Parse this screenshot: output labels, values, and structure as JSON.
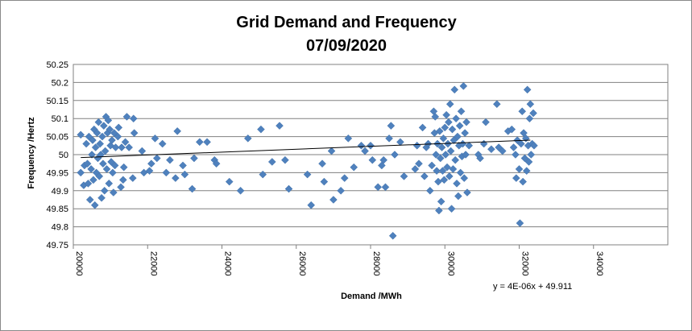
{
  "chart_data": {
    "type": "scatter",
    "title_line1": "Grid Demand and Frequency",
    "title_line2": "07/09/2020",
    "xlabel": "Demand /MWh",
    "ylabel": "Frequency /Hertz",
    "xlim": [
      20000,
      36000
    ],
    "ylim": [
      49.75,
      50.25
    ],
    "x_ticks": [
      "20000",
      "22000",
      "24000",
      "26000",
      "28000",
      "30000",
      "32000",
      "34000"
    ],
    "y_ticks": [
      "49.75",
      "49.8",
      "49.85",
      "49.9",
      "49.95",
      "50",
      "50.05",
      "50.1",
      "50.15",
      "50.2",
      "50.25"
    ],
    "grid": "horizontal",
    "marker_color": "#4f81bd",
    "trendline": {
      "slope": 4e-06,
      "intercept": 49.911,
      "x_range": [
        20200,
        32300
      ],
      "equation": "y = 4E-06x + 49.911"
    },
    "points": [
      [
        20200,
        50.055
      ],
      [
        20200,
        49.95
      ],
      [
        20280,
        49.915
      ],
      [
        20300,
        49.97
      ],
      [
        20350,
        50.03
      ],
      [
        20380,
        49.975
      ],
      [
        20400,
        49.92
      ],
      [
        20420,
        50.05
      ],
      [
        20450,
        49.875
      ],
      [
        20480,
        49.96
      ],
      [
        20500,
        50.0
      ],
      [
        20520,
        50.04
      ],
      [
        20540,
        49.93
      ],
      [
        20560,
        50.07
      ],
      [
        20580,
        49.86
      ],
      [
        20600,
        50.02
      ],
      [
        20620,
        49.95
      ],
      [
        20640,
        50.06
      ],
      [
        20660,
        49.99
      ],
      [
        20680,
        50.09
      ],
      [
        20700,
        49.94
      ],
      [
        20720,
        50.03
      ],
      [
        20740,
        50.0
      ],
      [
        20760,
        49.88
      ],
      [
        20780,
        50.05
      ],
      [
        20800,
        49.975
      ],
      [
        20820,
        50.08
      ],
      [
        20840,
        49.9
      ],
      [
        20860,
        50.01
      ],
      [
        20880,
        50.105
      ],
      [
        20900,
        49.96
      ],
      [
        20920,
        50.06
      ],
      [
        20940,
        50.095
      ],
      [
        20960,
        49.92
      ],
      [
        20980,
        50.07
      ],
      [
        21000,
        50.025
      ],
      [
        21020,
        49.98
      ],
      [
        21040,
        50.04
      ],
      [
        21060,
        49.95
      ],
      [
        21080,
        49.895
      ],
      [
        21100,
        50.06
      ],
      [
        21120,
        49.97
      ],
      [
        21140,
        50.02
      ],
      [
        21200,
        50.05
      ],
      [
        21220,
        50.075
      ],
      [
        21280,
        49.91
      ],
      [
        21300,
        50.02
      ],
      [
        21340,
        49.93
      ],
      [
        21360,
        49.965
      ],
      [
        21400,
        50.035
      ],
      [
        21440,
        50.105
      ],
      [
        21500,
        50.02
      ],
      [
        21600,
        49.935
      ],
      [
        21620,
        50.1
      ],
      [
        21640,
        50.06
      ],
      [
        21850,
        50.01
      ],
      [
        21900,
        49.95
      ],
      [
        22050,
        49.955
      ],
      [
        22100,
        49.975
      ],
      [
        22200,
        50.045
      ],
      [
        22250,
        49.99
      ],
      [
        22400,
        50.03
      ],
      [
        22500,
        49.95
      ],
      [
        22600,
        49.985
      ],
      [
        22750,
        49.935
      ],
      [
        22800,
        50.065
      ],
      [
        22950,
        49.97
      ],
      [
        23000,
        49.945
      ],
      [
        23200,
        49.905
      ],
      [
        23250,
        49.99
      ],
      [
        23400,
        50.035
      ],
      [
        23600,
        50.035
      ],
      [
        23800,
        49.985
      ],
      [
        23850,
        49.975
      ],
      [
        24200,
        49.925
      ],
      [
        24500,
        49.9
      ],
      [
        24700,
        50.045
      ],
      [
        25050,
        50.07
      ],
      [
        25100,
        49.945
      ],
      [
        25350,
        49.98
      ],
      [
        25550,
        50.08
      ],
      [
        25700,
        49.985
      ],
      [
        25800,
        49.905
      ],
      [
        26300,
        49.945
      ],
      [
        26400,
        49.86
      ],
      [
        26700,
        49.975
      ],
      [
        26750,
        49.925
      ],
      [
        26950,
        50.01
      ],
      [
        27000,
        49.875
      ],
      [
        27200,
        49.9
      ],
      [
        27300,
        49.935
      ],
      [
        27400,
        50.045
      ],
      [
        27550,
        49.965
      ],
      [
        27750,
        50.025
      ],
      [
        27850,
        50.01
      ],
      [
        28000,
        50.025
      ],
      [
        28050,
        49.985
      ],
      [
        28200,
        49.91
      ],
      [
        28300,
        49.97
      ],
      [
        28350,
        49.985
      ],
      [
        28400,
        49.91
      ],
      [
        28500,
        50.045
      ],
      [
        28550,
        50.08
      ],
      [
        28600,
        49.775
      ],
      [
        28650,
        50.0
      ],
      [
        28800,
        50.035
      ],
      [
        28900,
        49.94
      ],
      [
        29200,
        49.96
      ],
      [
        29250,
        50.025
      ],
      [
        29300,
        49.975
      ],
      [
        29400,
        50.075
      ],
      [
        29450,
        49.94
      ],
      [
        29500,
        50.02
      ],
      [
        29550,
        50.03
      ],
      [
        29600,
        49.9
      ],
      [
        29650,
        49.97
      ],
      [
        29700,
        50.12
      ],
      [
        29720,
        50.06
      ],
      [
        29740,
        50.105
      ],
      [
        29760,
        50.0
      ],
      [
        29780,
        49.955
      ],
      [
        29800,
        50.03
      ],
      [
        29820,
        49.925
      ],
      [
        29840,
        49.845
      ],
      [
        29860,
        50.065
      ],
      [
        29880,
        49.99
      ],
      [
        29900,
        49.87
      ],
      [
        29920,
        50.02
      ],
      [
        29940,
        49.955
      ],
      [
        29960,
        50.045
      ],
      [
        29980,
        49.93
      ],
      [
        30000,
        50.075
      ],
      [
        30020,
        50.0
      ],
      [
        30040,
        50.11
      ],
      [
        30060,
        49.965
      ],
      [
        30080,
        50.03
      ],
      [
        30100,
        50.09
      ],
      [
        30120,
        49.94
      ],
      [
        30140,
        50.14
      ],
      [
        30160,
        50.01
      ],
      [
        30180,
        49.85
      ],
      [
        30200,
        50.07
      ],
      [
        30220,
        49.96
      ],
      [
        30240,
        50.04
      ],
      [
        30260,
        50.18
      ],
      [
        30280,
        49.985
      ],
      [
        30300,
        50.1
      ],
      [
        30320,
        49.92
      ],
      [
        30340,
        50.05
      ],
      [
        30360,
        49.885
      ],
      [
        30380,
        50.025
      ],
      [
        30400,
        50.08
      ],
      [
        30420,
        49.95
      ],
      [
        30440,
        50.12
      ],
      [
        30460,
        49.995
      ],
      [
        30480,
        50.03
      ],
      [
        30500,
        50.19
      ],
      [
        30520,
        49.935
      ],
      [
        30540,
        50.06
      ],
      [
        30560,
        50.0
      ],
      [
        30580,
        50.09
      ],
      [
        30600,
        49.895
      ],
      [
        30650,
        50.025
      ],
      [
        30900,
        50.0
      ],
      [
        30950,
        49.99
      ],
      [
        31050,
        50.03
      ],
      [
        31100,
        50.09
      ],
      [
        31250,
        50.015
      ],
      [
        31400,
        50.14
      ],
      [
        31450,
        50.02
      ],
      [
        31550,
        50.01
      ],
      [
        31700,
        50.065
      ],
      [
        31800,
        50.07
      ],
      [
        31850,
        50.02
      ],
      [
        31900,
        50.0
      ],
      [
        31920,
        49.935
      ],
      [
        31950,
        50.04
      ],
      [
        32000,
        49.96
      ],
      [
        32020,
        49.81
      ],
      [
        32050,
        50.03
      ],
      [
        32080,
        50.12
      ],
      [
        32100,
        49.925
      ],
      [
        32120,
        50.06
      ],
      [
        32150,
        49.99
      ],
      [
        32180,
        50.045
      ],
      [
        32200,
        49.955
      ],
      [
        32220,
        50.18
      ],
      [
        32240,
        50.025
      ],
      [
        32260,
        49.98
      ],
      [
        32280,
        50.1
      ],
      [
        32300,
        50.14
      ],
      [
        32320,
        50.0
      ],
      [
        32350,
        50.03
      ],
      [
        32380,
        50.115
      ],
      [
        32400,
        50.025
      ]
    ]
  }
}
